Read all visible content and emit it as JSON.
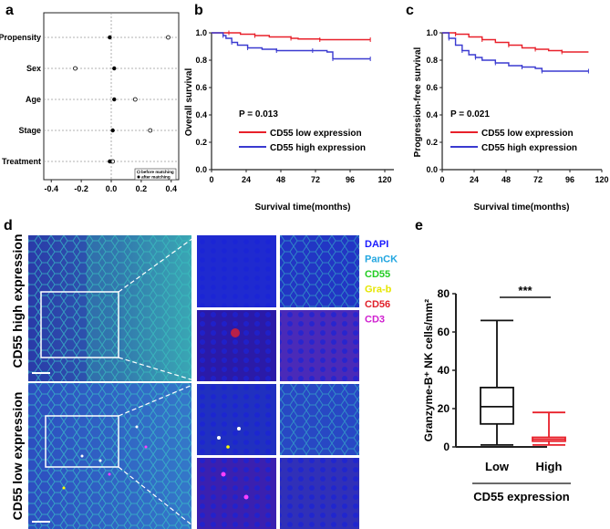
{
  "panels": {
    "a": "a",
    "b": "b",
    "c": "c",
    "d": "d",
    "e": "e"
  },
  "colors": {
    "low": "#e8202a",
    "high": "#3a3ad0",
    "red_box": "#e8202a"
  },
  "chart_data": [
    {
      "id": "a",
      "type": "scatter",
      "title": "",
      "categories": [
        "Propensity",
        "Sex",
        "Age",
        "Stage",
        "Treatment"
      ],
      "xlim": [
        -0.45,
        0.45
      ],
      "xticks": [
        "-0.4",
        "-0.2",
        "0.0",
        "0.2",
        "0.4"
      ],
      "series": [
        {
          "name": "before matching",
          "values": [
            0.38,
            -0.24,
            0.16,
            0.26,
            0.01
          ]
        },
        {
          "name": "after matching",
          "values": [
            -0.01,
            0.02,
            0.02,
            0.01,
            -0.01
          ]
        }
      ],
      "legend": "bottom-right"
    },
    {
      "id": "b",
      "type": "line",
      "ylabel": "Overall survival",
      "xlabel": "Survival time(months)",
      "xlim": [
        0,
        120
      ],
      "ylim": [
        0,
        1.0
      ],
      "xticks": [
        "0",
        "24",
        "48",
        "72",
        "96",
        "120"
      ],
      "yticks": [
        "0.0",
        "0.2",
        "0.4",
        "0.6",
        "0.8",
        "1.0"
      ],
      "annotation": "P = 0.013",
      "series": [
        {
          "name": "CD55 low expression",
          "x": [
            0,
            12,
            20,
            30,
            40,
            55,
            60,
            75,
            80,
            110
          ],
          "y": [
            1.0,
            1.0,
            0.99,
            0.98,
            0.97,
            0.96,
            0.955,
            0.95,
            0.95,
            0.95
          ]
        },
        {
          "name": "CD55 high expression",
          "x": [
            0,
            8,
            10,
            14,
            18,
            25,
            35,
            45,
            60,
            70,
            80,
            84,
            90,
            110
          ],
          "y": [
            1.0,
            0.98,
            0.96,
            0.93,
            0.91,
            0.89,
            0.88,
            0.87,
            0.87,
            0.87,
            0.86,
            0.81,
            0.81,
            0.81
          ]
        }
      ]
    },
    {
      "id": "c",
      "type": "line",
      "ylabel": "Progression-free survival",
      "xlabel": "Survival time(months)",
      "xlim": [
        0,
        120
      ],
      "ylim": [
        0,
        1.0
      ],
      "xticks": [
        "0",
        "24",
        "48",
        "72",
        "96",
        "120"
      ],
      "yticks": [
        "0.0",
        "0.2",
        "0.4",
        "0.6",
        "0.8",
        "1.0"
      ],
      "annotation": "P = 0.021",
      "series": [
        {
          "name": "CD55 low expression",
          "x": [
            0,
            10,
            20,
            30,
            40,
            50,
            60,
            70,
            80,
            90,
            110
          ],
          "y": [
            1.0,
            0.99,
            0.97,
            0.95,
            0.93,
            0.91,
            0.89,
            0.88,
            0.87,
            0.86,
            0.86
          ]
        },
        {
          "name": "CD55 high expression",
          "x": [
            0,
            5,
            10,
            15,
            20,
            25,
            30,
            40,
            50,
            60,
            70,
            75,
            90,
            110
          ],
          "y": [
            1.0,
            0.96,
            0.91,
            0.87,
            0.84,
            0.82,
            0.8,
            0.78,
            0.76,
            0.75,
            0.74,
            0.72,
            0.72,
            0.72
          ]
        }
      ]
    },
    {
      "id": "e",
      "type": "box",
      "ylabel": "Granzyme-B⁺ NK cells/mm²",
      "xlabel": "CD55 expression",
      "categories": [
        "Low",
        "High"
      ],
      "ylim": [
        0,
        80
      ],
      "yticks": [
        "0",
        "20",
        "40",
        "60",
        "80"
      ],
      "annotation": "***",
      "series": [
        {
          "name": "Low",
          "min": 1,
          "q1": 12,
          "median": 21,
          "q3": 31,
          "max": 66
        },
        {
          "name": "High",
          "min": 1,
          "q1": 3,
          "median": 4,
          "q3": 5,
          "max": 18
        }
      ]
    }
  ],
  "panel_d": {
    "row_labels": [
      "CD55 high expression",
      "CD55 low expression"
    ],
    "legend": [
      {
        "label": "DAPI",
        "color": "#1a1aff"
      },
      {
        "label": "PanCK",
        "color": "#22a6e0"
      },
      {
        "label": "CD55",
        "color": "#22cc22"
      },
      {
        "label": "Gra-b",
        "color": "#e6e600"
      },
      {
        "label": "CD56",
        "color": "#e0202a"
      },
      {
        "label": "CD3",
        "color": "#d020d0"
      }
    ]
  }
}
